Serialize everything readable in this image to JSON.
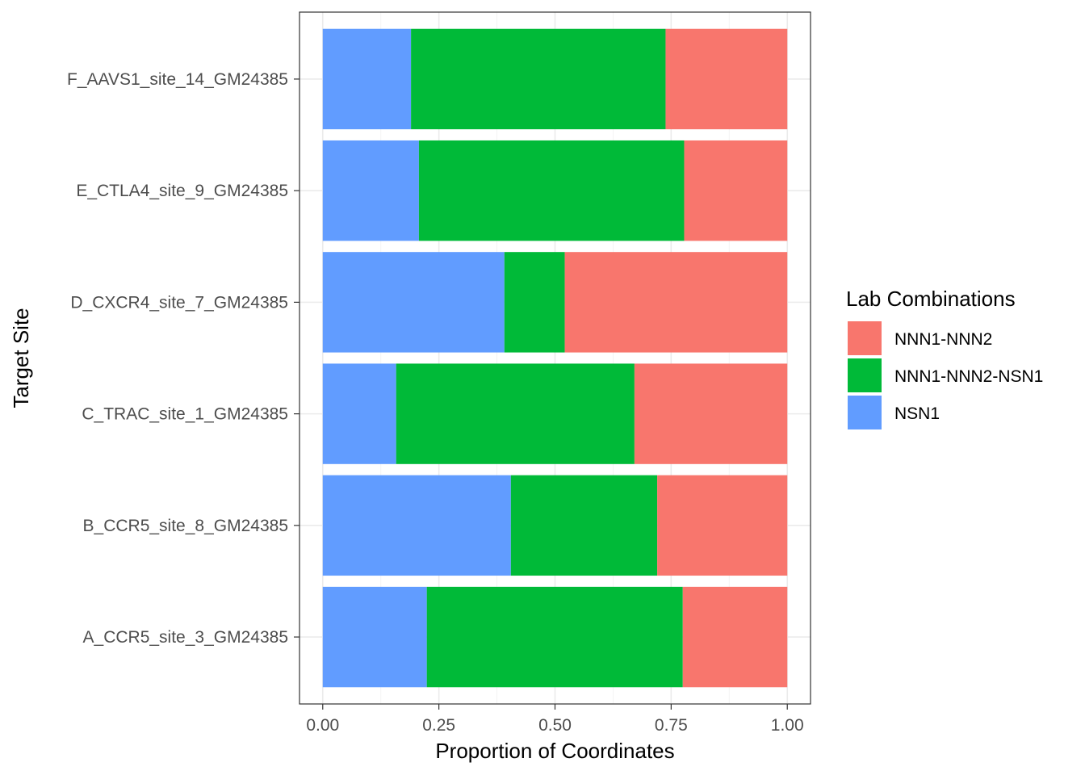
{
  "chart_data": {
    "type": "bar",
    "orientation": "horizontal",
    "stacked": true,
    "categories": [
      "A_CCR5_site_3_GM24385",
      "B_CCR5_site_8_GM24385",
      "C_TRAC_site_1_GM24385",
      "D_CXCR4_site_7_GM24385",
      "E_CTLA4_site_9_GM24385",
      "F_AAVS1_site_14_GM24385"
    ],
    "series": [
      {
        "name": "NSN1",
        "color": "#619CFF",
        "values": [
          0.224,
          0.405,
          0.158,
          0.391,
          0.207,
          0.19
        ]
      },
      {
        "name": "NNN1-NNN2-NSN1",
        "color": "#00BA38",
        "values": [
          0.551,
          0.315,
          0.513,
          0.13,
          0.571,
          0.548
        ]
      },
      {
        "name": "NNN1-NNN2",
        "color": "#F8766D",
        "values": [
          0.225,
          0.28,
          0.329,
          0.479,
          0.222,
          0.262
        ]
      }
    ],
    "stack_order": [
      "NSN1",
      "NNN1-NNN2-NSN1",
      "NNN1-NNN2"
    ],
    "xlabel": "Proportion of Coordinates",
    "ylabel": "Target Site",
    "xlim": [
      0,
      1
    ],
    "xticks": [
      "0.00",
      "0.25",
      "0.50",
      "0.75",
      "1.00"
    ],
    "xtick_values": [
      0,
      0.25,
      0.5,
      0.75,
      1.0
    ],
    "grid": true,
    "theme": "bw",
    "legend": {
      "title": "Lab Combinations",
      "position": "right",
      "items": [
        "NNN1-NNN2",
        "NNN1-NNN2-NSN1",
        "NSN1"
      ]
    }
  }
}
